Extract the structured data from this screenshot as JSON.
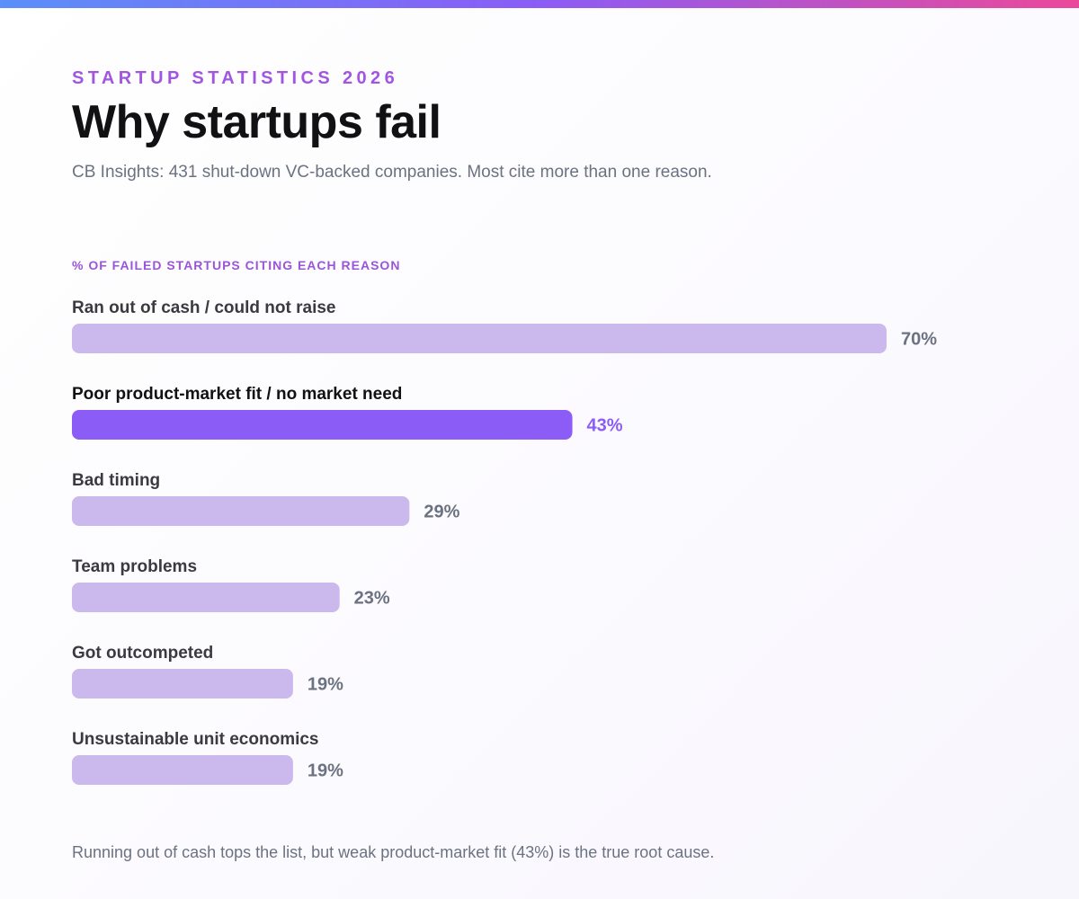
{
  "header": {
    "eyebrow": "STARTUP STATISTICS 2026",
    "title": "Why startups fail",
    "subtitle": "CB Insights: 431 shut-down VC-backed companies. Most cite more than one reason."
  },
  "chart_data": {
    "type": "bar",
    "orientation": "horizontal",
    "title": "% OF FAILED STARTUPS CITING EACH REASON",
    "categories": [
      "Ran out of cash / could not raise",
      "Poor product-market fit / no market need",
      "Bad timing",
      "Team problems",
      "Got outcompeted",
      "Unsustainable unit economics"
    ],
    "values": [
      70,
      43,
      29,
      23,
      19,
      19
    ],
    "value_labels": [
      "70%",
      "43%",
      "29%",
      "23%",
      "19%",
      "19%"
    ],
    "highlight_index": 1,
    "xlim": [
      0,
      100
    ],
    "grid": false,
    "colors": {
      "bar": "#cbb9ee",
      "highlight": "#8b5cf6",
      "value_text": "#6b7280",
      "highlight_text": "#8b5cf6"
    }
  },
  "footnote": "Running out of cash tops the list, but weak product-market fit (43%) is the true root cause.",
  "colors": {
    "accent": "#a155e0",
    "title": "#111114",
    "muted": "#6b7280"
  }
}
